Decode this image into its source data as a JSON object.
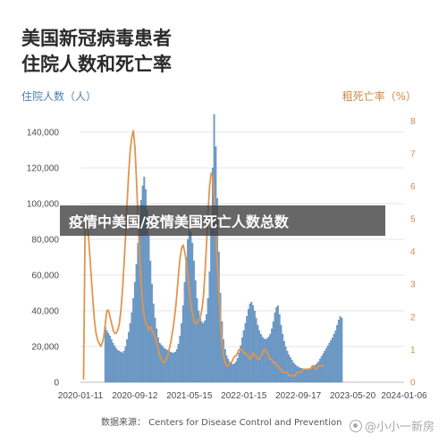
{
  "chart_data": {
    "type": "bar+line",
    "title_line1": "美国新冠病毒患者",
    "title_line2": "住院人数和死亡率",
    "ylabel_left": "住院人数（人）",
    "ylabel_right": "粗死亡率（%）",
    "left_ylim": [
      0,
      150000
    ],
    "left_ticks": [
      "0",
      "20,000",
      "40,000",
      "60,000",
      "80,000",
      "100,000",
      "120,000",
      "140,000"
    ],
    "right_ylim": [
      0,
      8.2
    ],
    "right_ticks": [
      "0",
      "1",
      "2",
      "3",
      "4",
      "5",
      "6",
      "7",
      "8"
    ],
    "x_ticks": [
      "2020-01-11",
      "2020-09-12",
      "2021-05-15",
      "2022-01-15",
      "2022-09-17",
      "2023-05-20",
      "2024-01-06"
    ],
    "x_tick_week": [
      0,
      35,
      70,
      105,
      140,
      175,
      208
    ],
    "source": "数据来源： Centers for Disease Control and Prevention",
    "colors": {
      "bar": "#6f9cc8",
      "bar_edge": "#4f7fb0",
      "line": "#e0954e",
      "grid": "#e6e6e6"
    },
    "hospitalizations": {
      "start_week": 16,
      "values": [
        31000,
        29000,
        27500,
        26000,
        24000,
        22000,
        20500,
        19000,
        18000,
        17500,
        17000,
        16500,
        17500,
        20000,
        24000,
        28000,
        33000,
        39000,
        47000,
        56000,
        66000,
        78000,
        90000,
        102000,
        110000,
        115000,
        108000,
        96000,
        82000,
        68000,
        55000,
        44000,
        36000,
        30000,
        25000,
        22000,
        21000,
        20000,
        19000,
        18500,
        18000,
        17500,
        17000,
        16500,
        16500,
        17000,
        18500,
        21500,
        26000,
        33000,
        43000,
        56000,
        70000,
        80000,
        85000,
        84000,
        78000,
        68000,
        57000,
        47000,
        40000,
        36000,
        34000,
        33000,
        34500,
        38000,
        47000,
        62000,
        88000,
        120000,
        150000,
        132000,
        103000,
        73000,
        50000,
        34000,
        24000,
        18500,
        15000,
        13000,
        11500,
        10500,
        10000,
        10500,
        11500,
        13500,
        16500,
        20500,
        25000,
        29000,
        33000,
        37000,
        41000,
        44000,
        45000,
        43000,
        40000,
        36000,
        32000,
        29000,
        27000,
        25500,
        24500,
        24000,
        24500,
        25500,
        27000,
        30000,
        34000,
        39000,
        42000,
        43000,
        38000,
        32000,
        27000,
        23000,
        20000,
        17500,
        15500,
        14000,
        12500,
        11000,
        10000,
        9200,
        8600,
        8100,
        7900,
        7700,
        7600,
        7500,
        7600,
        7800,
        8100,
        8500,
        9000,
        9700,
        10500,
        11500,
        13000,
        14500,
        16000,
        17500,
        19000,
        20500,
        22000,
        23500,
        25000,
        27000,
        29000,
        32000,
        35000,
        37000,
        36000
      ]
    },
    "death_rate": {
      "start_week": 2,
      "values": [
        0.1,
        4.8,
        5.0,
        4.6,
        3.9,
        3.2,
        2.5,
        1.9,
        1.5,
        1.3,
        1.2,
        1.1,
        1.2,
        1.4,
        1.8,
        2.2,
        2.2,
        2.0,
        1.8,
        1.6,
        1.5,
        1.5,
        1.6,
        1.8,
        2.2,
        2.8,
        3.6,
        4.5,
        5.5,
        6.4,
        7.1,
        7.5,
        7.7,
        7.2,
        6.2,
        5.0,
        3.9,
        3.0,
        2.4,
        2.0,
        1.8,
        1.7,
        1.6,
        1.7,
        1.6,
        1.5,
        1.4,
        1.2,
        1.0,
        0.8,
        0.7,
        0.6,
        0.6,
        0.7,
        0.8,
        1.0,
        1.2,
        1.5,
        1.8,
        2.2,
        2.7,
        3.3,
        3.8,
        4.1,
        4.2,
        4.0,
        3.7,
        3.3,
        2.8,
        2.4,
        2.1,
        1.9,
        1.8,
        1.8,
        1.9,
        2.0,
        2.2,
        2.6,
        3.3,
        4.2,
        5.2,
        6.0,
        6.4,
        6.3,
        5.7,
        4.7,
        3.6,
        2.6,
        1.8,
        1.2,
        0.8,
        0.6,
        0.5,
        0.5,
        0.6,
        0.6,
        0.7,
        0.8,
        0.8,
        0.9,
        1.0,
        1.0,
        1.0,
        0.9,
        0.9,
        0.8,
        0.8,
        0.7,
        0.8,
        0.9,
        0.8,
        0.8,
        0.7,
        0.7,
        0.8,
        0.9,
        1.0,
        1.0,
        0.9,
        0.8,
        0.7,
        0.7,
        0.6,
        0.6,
        0.5,
        0.5,
        0.4,
        0.4,
        0.3,
        0.3,
        0.3,
        0.3,
        0.2,
        0.2,
        0.2,
        0.2,
        0.2,
        0.3,
        0.3,
        0.3,
        0.3,
        0.4,
        0.4,
        0.4,
        0.4,
        0.4,
        0.4,
        0.5,
        0.5,
        0.4,
        0.4,
        0.5,
        0.5,
        0.5,
        0.5
      ]
    }
  },
  "overlay": {
    "banner_text": "疫情中美国/疫情美国死亡人数总数",
    "watermark_text": "@小小一新房"
  }
}
